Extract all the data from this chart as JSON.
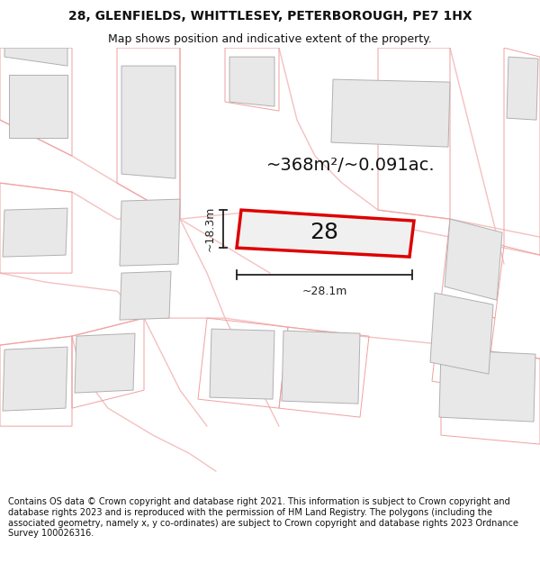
{
  "title_line1": "28, GLENFIELDS, WHITTLESEY, PETERBOROUGH, PE7 1HX",
  "title_line2": "Map shows position and indicative extent of the property.",
  "area_label": "~368m²/~0.091ac.",
  "plot_number": "28",
  "dim_width": "~28.1m",
  "dim_height": "~18.3m",
  "footer_text": "Contains OS data © Crown copyright and database right 2021. This information is subject to Crown copyright and database rights 2023 and is reproduced with the permission of HM Land Registry. The polygons (including the associated geometry, namely x, y co-ordinates) are subject to Crown copyright and database rights 2023 Ordnance Survey 100026316.",
  "bg_color": "#ffffff",
  "map_bg": "#ffffff",
  "building_fill": "#e8e8e8",
  "building_edge": "#b0b0b0",
  "highlight_fill": "#f0f0f0",
  "highlight_edge": "#dd0000",
  "road_color": "#f5c0c0",
  "parcel_color": "#f0a0a0",
  "dim_color": "#222222",
  "text_color": "#111111",
  "area_fontsize": 14,
  "number_fontsize": 18,
  "dim_fontsize": 9,
  "title1_fontsize": 10,
  "title2_fontsize": 9,
  "footer_fontsize": 7
}
